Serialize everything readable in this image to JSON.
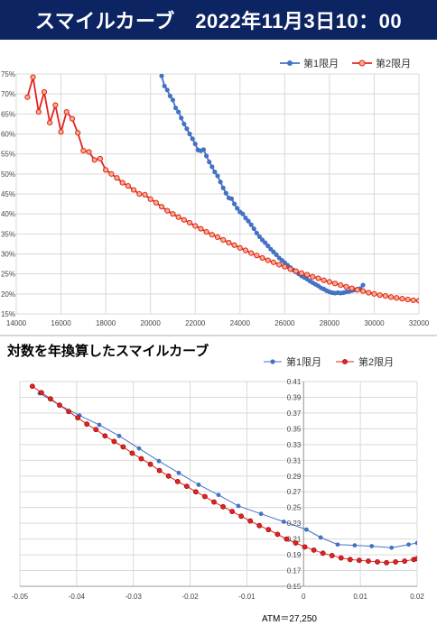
{
  "header": {
    "title": "スマイルカーブ　2022年11月3日10：00"
  },
  "section2": {
    "title": "対数を年換算したスマイルカーブ"
  },
  "atm_label": "ATM＝27,250",
  "colors": {
    "series1": "#4472c4",
    "series2": "#e32222",
    "banner_bg": "#0d2463"
  },
  "chart_data": [
    {
      "type": "line",
      "title": "",
      "xlabel": "",
      "ylabel": "",
      "xlim": [
        14000,
        32000
      ],
      "ylim": [
        0.15,
        0.75
      ],
      "x_ticks": [
        "14000",
        "16000",
        "18000",
        "20000",
        "22000",
        "24000",
        "26000",
        "28000",
        "30000",
        "32000"
      ],
      "y_ticks": [
        "15%",
        "20%",
        "25%",
        "30%",
        "35%",
        "40%",
        "45%",
        "50%",
        "55%",
        "60%",
        "65%",
        "70%",
        "75%"
      ],
      "grid": true,
      "legend": "top-right",
      "series": [
        {
          "name": "第1限月",
          "x": [
            20375,
            20500,
            20625,
            20750,
            20875,
            21000,
            21125,
            21250,
            21375,
            21500,
            21625,
            21750,
            21875,
            22000,
            22125,
            22250,
            22375,
            22500,
            22625,
            22750,
            22875,
            23000,
            23125,
            23250,
            23375,
            23500,
            23625,
            23750,
            23875,
            24000,
            24125,
            24250,
            24375,
            24500,
            24625,
            24750,
            24875,
            25000,
            25125,
            25250,
            25375,
            25500,
            25625,
            25750,
            25875,
            26000,
            26125,
            26250,
            26375,
            26500,
            26625,
            26750,
            26875,
            27000,
            27125,
            27250,
            27375,
            27500,
            27625,
            27750,
            27875,
            28000,
            28125,
            28250,
            28375,
            28500,
            28625,
            28750,
            28875,
            29000,
            29125,
            29250,
            29375,
            29500
          ],
          "y": [
            0.76,
            0.745,
            0.72,
            0.71,
            0.695,
            0.685,
            0.665,
            0.655,
            0.64,
            0.625,
            0.613,
            0.6,
            0.588,
            0.575,
            0.56,
            0.558,
            0.561,
            0.545,
            0.53,
            0.518,
            0.505,
            0.495,
            0.48,
            0.465,
            0.452,
            0.44,
            0.438,
            0.425,
            0.414,
            0.405,
            0.4,
            0.39,
            0.382,
            0.373,
            0.363,
            0.352,
            0.343,
            0.335,
            0.328,
            0.32,
            0.312,
            0.305,
            0.298,
            0.29,
            0.284,
            0.278,
            0.272,
            0.266,
            0.26,
            0.255,
            0.25,
            0.245,
            0.241,
            0.237,
            0.232,
            0.228,
            0.224,
            0.22,
            0.215,
            0.212,
            0.208,
            0.205,
            0.203,
            0.202,
            0.203,
            0.202,
            0.203,
            0.205,
            0.206,
            0.208,
            0.21,
            0.212,
            0.213,
            0.222
          ]
        },
        {
          "name": "第2限月",
          "x": [
            14500,
            14750,
            15000,
            15250,
            15500,
            15750,
            16000,
            16250,
            16500,
            16750,
            17000,
            17250,
            17500,
            17750,
            18000,
            18250,
            18500,
            18750,
            19000,
            19250,
            19500,
            19750,
            20000,
            20250,
            20500,
            20750,
            21000,
            21250,
            21500,
            21750,
            22000,
            22250,
            22500,
            22750,
            23000,
            23250,
            23500,
            23750,
            24000,
            24250,
            24500,
            24750,
            25000,
            25250,
            25500,
            25750,
            26000,
            26250,
            26500,
            26750,
            27000,
            27250,
            27500,
            27750,
            28000,
            28250,
            28500,
            28750,
            29000,
            29250,
            29500,
            29750,
            30000,
            30250,
            30500,
            30750,
            31000,
            31250,
            31500,
            31750,
            32000
          ],
          "y": [
            0.692,
            0.742,
            0.655,
            0.705,
            0.628,
            0.672,
            0.605,
            0.655,
            0.638,
            0.603,
            0.558,
            0.555,
            0.535,
            0.538,
            0.51,
            0.5,
            0.49,
            0.478,
            0.47,
            0.46,
            0.45,
            0.448,
            0.437,
            0.428,
            0.418,
            0.408,
            0.4,
            0.392,
            0.385,
            0.378,
            0.37,
            0.363,
            0.355,
            0.348,
            0.342,
            0.335,
            0.328,
            0.322,
            0.315,
            0.309,
            0.302,
            0.296,
            0.29,
            0.284,
            0.279,
            0.273,
            0.268,
            0.262,
            0.257,
            0.252,
            0.248,
            0.243,
            0.239,
            0.234,
            0.23,
            0.226,
            0.222,
            0.218,
            0.214,
            0.21,
            0.207,
            0.203,
            0.2,
            0.197,
            0.195,
            0.192,
            0.19,
            0.188,
            0.186,
            0.184,
            0.183
          ]
        }
      ]
    },
    {
      "type": "line",
      "title": "対数を年換算したスマイルカーブ",
      "xlabel": "",
      "ylabel": "",
      "xlim": [
        -0.05,
        0.02
      ],
      "ylim": [
        0.15,
        0.41
      ],
      "x_ticks": [
        "-0.05",
        "-0.04",
        "-0.03",
        "-0.02",
        "-0.01",
        "0",
        "0.01",
        "0.02"
      ],
      "y_ticks": [
        "0.15",
        "0.17",
        "0.19",
        "0.21",
        "0.23",
        "0.25",
        "0.27",
        "0.29",
        "0.31",
        "0.33",
        "0.35",
        "0.37",
        "0.39",
        "0.41"
      ],
      "grid": true,
      "legend": "top-right",
      "series": [
        {
          "name": "第1限月",
          "x": [
            -0.0465,
            -0.043,
            -0.0395,
            -0.036,
            -0.0325,
            -0.029,
            -0.0255,
            -0.022,
            -0.0185,
            -0.015,
            -0.0115,
            -0.0075,
            -0.0035,
            0.0005,
            0.003,
            0.006,
            0.009,
            0.012,
            0.0155,
            0.0185,
            0.02
          ],
          "y": [
            0.395,
            0.38,
            0.367,
            0.355,
            0.341,
            0.325,
            0.309,
            0.294,
            0.279,
            0.266,
            0.252,
            0.242,
            0.232,
            0.222,
            0.212,
            0.203,
            0.202,
            0.201,
            0.199,
            0.203,
            0.205
          ]
        },
        {
          "name": "第2限月",
          "x": [
            -0.0478,
            -0.0462,
            -0.0446,
            -0.043,
            -0.0414,
            -0.0398,
            -0.0382,
            -0.0366,
            -0.035,
            -0.0334,
            -0.0318,
            -0.0302,
            -0.0286,
            -0.027,
            -0.0254,
            -0.0238,
            -0.0222,
            -0.0206,
            -0.019,
            -0.0174,
            -0.0158,
            -0.0142,
            -0.0126,
            -0.011,
            -0.0094,
            -0.0078,
            -0.0062,
            -0.0046,
            -0.003,
            -0.0014,
            0.0002,
            0.0018,
            0.0034,
            0.005,
            0.0066,
            0.0082,
            0.0098,
            0.0114,
            0.013,
            0.0146,
            0.0162,
            0.0178,
            0.0194,
            0.02
          ],
          "y": [
            0.404,
            0.396,
            0.388,
            0.38,
            0.372,
            0.364,
            0.356,
            0.349,
            0.341,
            0.334,
            0.327,
            0.319,
            0.312,
            0.305,
            0.297,
            0.29,
            0.283,
            0.277,
            0.27,
            0.264,
            0.257,
            0.251,
            0.245,
            0.239,
            0.233,
            0.227,
            0.222,
            0.216,
            0.21,
            0.205,
            0.2,
            0.196,
            0.192,
            0.189,
            0.186,
            0.184,
            0.183,
            0.182,
            0.181,
            0.18,
            0.181,
            0.182,
            0.184,
            0.185
          ]
        }
      ]
    }
  ]
}
